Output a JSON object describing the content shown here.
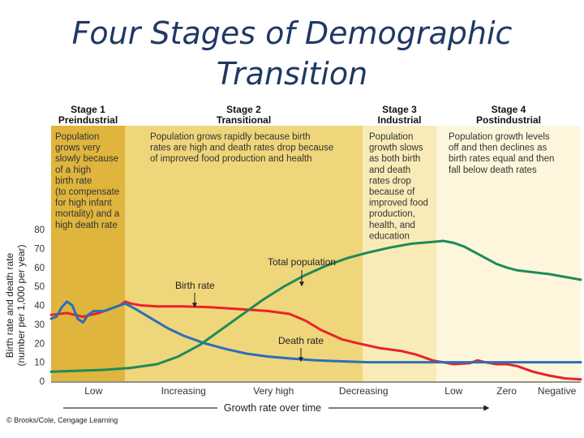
{
  "title_line1": "Four Stages of Demographic",
  "title_line2": "Transition",
  "chart_data": {
    "type": "line",
    "stages": [
      {
        "heading": "Stage 1",
        "name": "Preindustrial",
        "color": "#dfb53d",
        "description": [
          "Population",
          "grows very",
          "slowly because",
          "of a high",
          "birth rate",
          "(to compensate",
          "for high infant",
          "mortality) and a",
          "high death rate"
        ]
      },
      {
        "heading": "Stage 2",
        "name": "Transitional",
        "color": "#efd67b",
        "description": [
          "Population grows rapidly because birth",
          "rates are high and death rates drop because",
          "of improved food production and health"
        ]
      },
      {
        "heading": "Stage 3",
        "name": "Industrial",
        "color": "#f8ebb7",
        "description": [
          "Population",
          "growth slows",
          "as both birth",
          "and death",
          "rates drop",
          "because of",
          "improved food",
          "production,",
          "health, and",
          "education"
        ]
      },
      {
        "heading": "Stage 4",
        "name": "Postindustrial",
        "color": "#fdf6dc",
        "description": [
          "Population growth levels",
          "off and then declines as",
          "birth rates equal and then",
          "fall below death rates"
        ]
      }
    ],
    "ylabel_line1": "Birth rate and death rate",
    "ylabel_line2": "(number per 1,000 per year)",
    "ylim": [
      0,
      80
    ],
    "yticks": [
      0,
      10,
      20,
      30,
      40,
      50,
      60,
      70,
      80
    ],
    "xlim": [
      0,
      100
    ],
    "growth_labels": [
      {
        "text": "Low",
        "x": 8
      },
      {
        "text": "Increasing",
        "x": 25
      },
      {
        "text": "Very high",
        "x": 42
      },
      {
        "text": "Decreasing",
        "x": 59
      },
      {
        "text": "Low",
        "x": 76
      },
      {
        "text": "Zero",
        "x": 86
      },
      {
        "text": "Negative",
        "x": 95.5
      }
    ],
    "xlabel": "Growth rate over time",
    "credit": "© Brooks/Cole, Cengage Learning",
    "series": [
      {
        "name": "Birth rate",
        "color": "#e8232a",
        "points": [
          [
            0,
            35
          ],
          [
            3,
            36
          ],
          [
            6,
            34
          ],
          [
            9,
            36
          ],
          [
            11,
            38
          ],
          [
            13,
            40
          ],
          [
            14,
            42
          ],
          [
            15,
            41
          ],
          [
            17,
            40
          ],
          [
            20,
            39.5
          ],
          [
            25,
            39.5
          ],
          [
            30,
            39
          ],
          [
            36,
            38
          ],
          [
            41,
            37
          ],
          [
            45,
            35.5
          ],
          [
            48,
            32
          ],
          [
            51,
            27
          ],
          [
            55,
            22
          ],
          [
            58,
            20
          ],
          [
            62,
            17.5
          ],
          [
            66,
            16
          ],
          [
            69,
            14
          ],
          [
            72,
            11
          ],
          [
            76,
            9
          ],
          [
            79,
            9.5
          ],
          [
            80.5,
            11
          ],
          [
            82,
            10
          ],
          [
            84,
            9
          ],
          [
            86,
            9
          ],
          [
            88,
            8
          ],
          [
            91,
            5
          ],
          [
            94,
            3
          ],
          [
            97,
            1.5
          ],
          [
            100,
            1
          ]
        ]
      },
      {
        "name": "Death rate",
        "color": "#2b6fb7",
        "points": [
          [
            0,
            33
          ],
          [
            1,
            34
          ],
          [
            2,
            39
          ],
          [
            3,
            42
          ],
          [
            4,
            40
          ],
          [
            5,
            33
          ],
          [
            6,
            31
          ],
          [
            7,
            35
          ],
          [
            8,
            37
          ],
          [
            10,
            37
          ],
          [
            12,
            39
          ],
          [
            13,
            40
          ],
          [
            14,
            41
          ],
          [
            16,
            38
          ],
          [
            19,
            33
          ],
          [
            22,
            28
          ],
          [
            25,
            24
          ],
          [
            29,
            20
          ],
          [
            33,
            17
          ],
          [
            37,
            14.5
          ],
          [
            41,
            13
          ],
          [
            45,
            12
          ],
          [
            50,
            11
          ],
          [
            55,
            10.5
          ],
          [
            60,
            10
          ],
          [
            65,
            10
          ],
          [
            70,
            10
          ],
          [
            75,
            10
          ],
          [
            80,
            10
          ],
          [
            85,
            10
          ],
          [
            90,
            10
          ],
          [
            95,
            10
          ],
          [
            100,
            10
          ]
        ]
      },
      {
        "name": "Total population",
        "color": "#1e8a5a",
        "points": [
          [
            0,
            5
          ],
          [
            5,
            5.5
          ],
          [
            10,
            6
          ],
          [
            15,
            7
          ],
          [
            20,
            9
          ],
          [
            24,
            13
          ],
          [
            28,
            19
          ],
          [
            32,
            27
          ],
          [
            36,
            35
          ],
          [
            40,
            43
          ],
          [
            44,
            50
          ],
          [
            48,
            56
          ],
          [
            52,
            61
          ],
          [
            56,
            65
          ],
          [
            60,
            68
          ],
          [
            64,
            70.5
          ],
          [
            68,
            72.5
          ],
          [
            72,
            73.5
          ],
          [
            74,
            74
          ],
          [
            76,
            73
          ],
          [
            78,
            71
          ],
          [
            80,
            68
          ],
          [
            82,
            65
          ],
          [
            84,
            62
          ],
          [
            86,
            60
          ],
          [
            88,
            58.5
          ],
          [
            91,
            57.5
          ],
          [
            94,
            56.5
          ],
          [
            97,
            55
          ],
          [
            100,
            53.5
          ]
        ]
      }
    ],
    "annotations": [
      {
        "text": "Total population",
        "series": "Total population"
      },
      {
        "text": "Birth rate",
        "series": "Birth rate"
      },
      {
        "text": "Death rate",
        "series": "Death rate"
      }
    ]
  }
}
